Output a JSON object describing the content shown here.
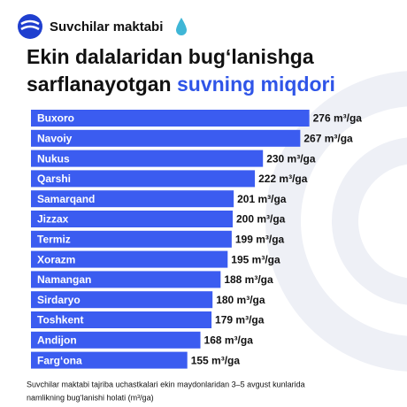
{
  "brand": "Suvchilar maktabi",
  "chart_data": {
    "type": "bar",
    "orientation": "horizontal",
    "title": {
      "line1": "Ekin dalalaridan bug‘lanishga",
      "line2": "sarflanayotgan",
      "line2_highlight": "suvning miqdori"
    },
    "categories": [
      "Buxoro",
      "Navoiy",
      "Nukus",
      "Qarshi",
      "Samarqand",
      "Jizzax",
      "Termiz",
      "Xorazm",
      "Namangan",
      "Sirdaryo",
      "Toshkent",
      "Andijon",
      "Farg‘ona"
    ],
    "values": [
      276,
      267,
      230,
      222,
      201,
      200,
      199,
      195,
      188,
      180,
      179,
      168,
      155
    ],
    "value_labels": [
      "276 m³/ga",
      "267 m³/ga",
      "230 m³/ga",
      "222 m³/ga",
      "201 m³/ga",
      "200 m³/ga",
      "199 m³/ga",
      "195 m³/ga",
      "188 m³/ga",
      "180 m³/ga",
      "179 m³/ga",
      "168 m³/ga",
      "155 m³/ga"
    ],
    "color": "#3b5cf0",
    "caption": [
      "Suvchilar maktabi tajriba uchastkalari ekin maydonlaridan 3–5 avgust kunlarida",
      "namlikning bug‘lanishi holati (m³/ga)"
    ]
  }
}
